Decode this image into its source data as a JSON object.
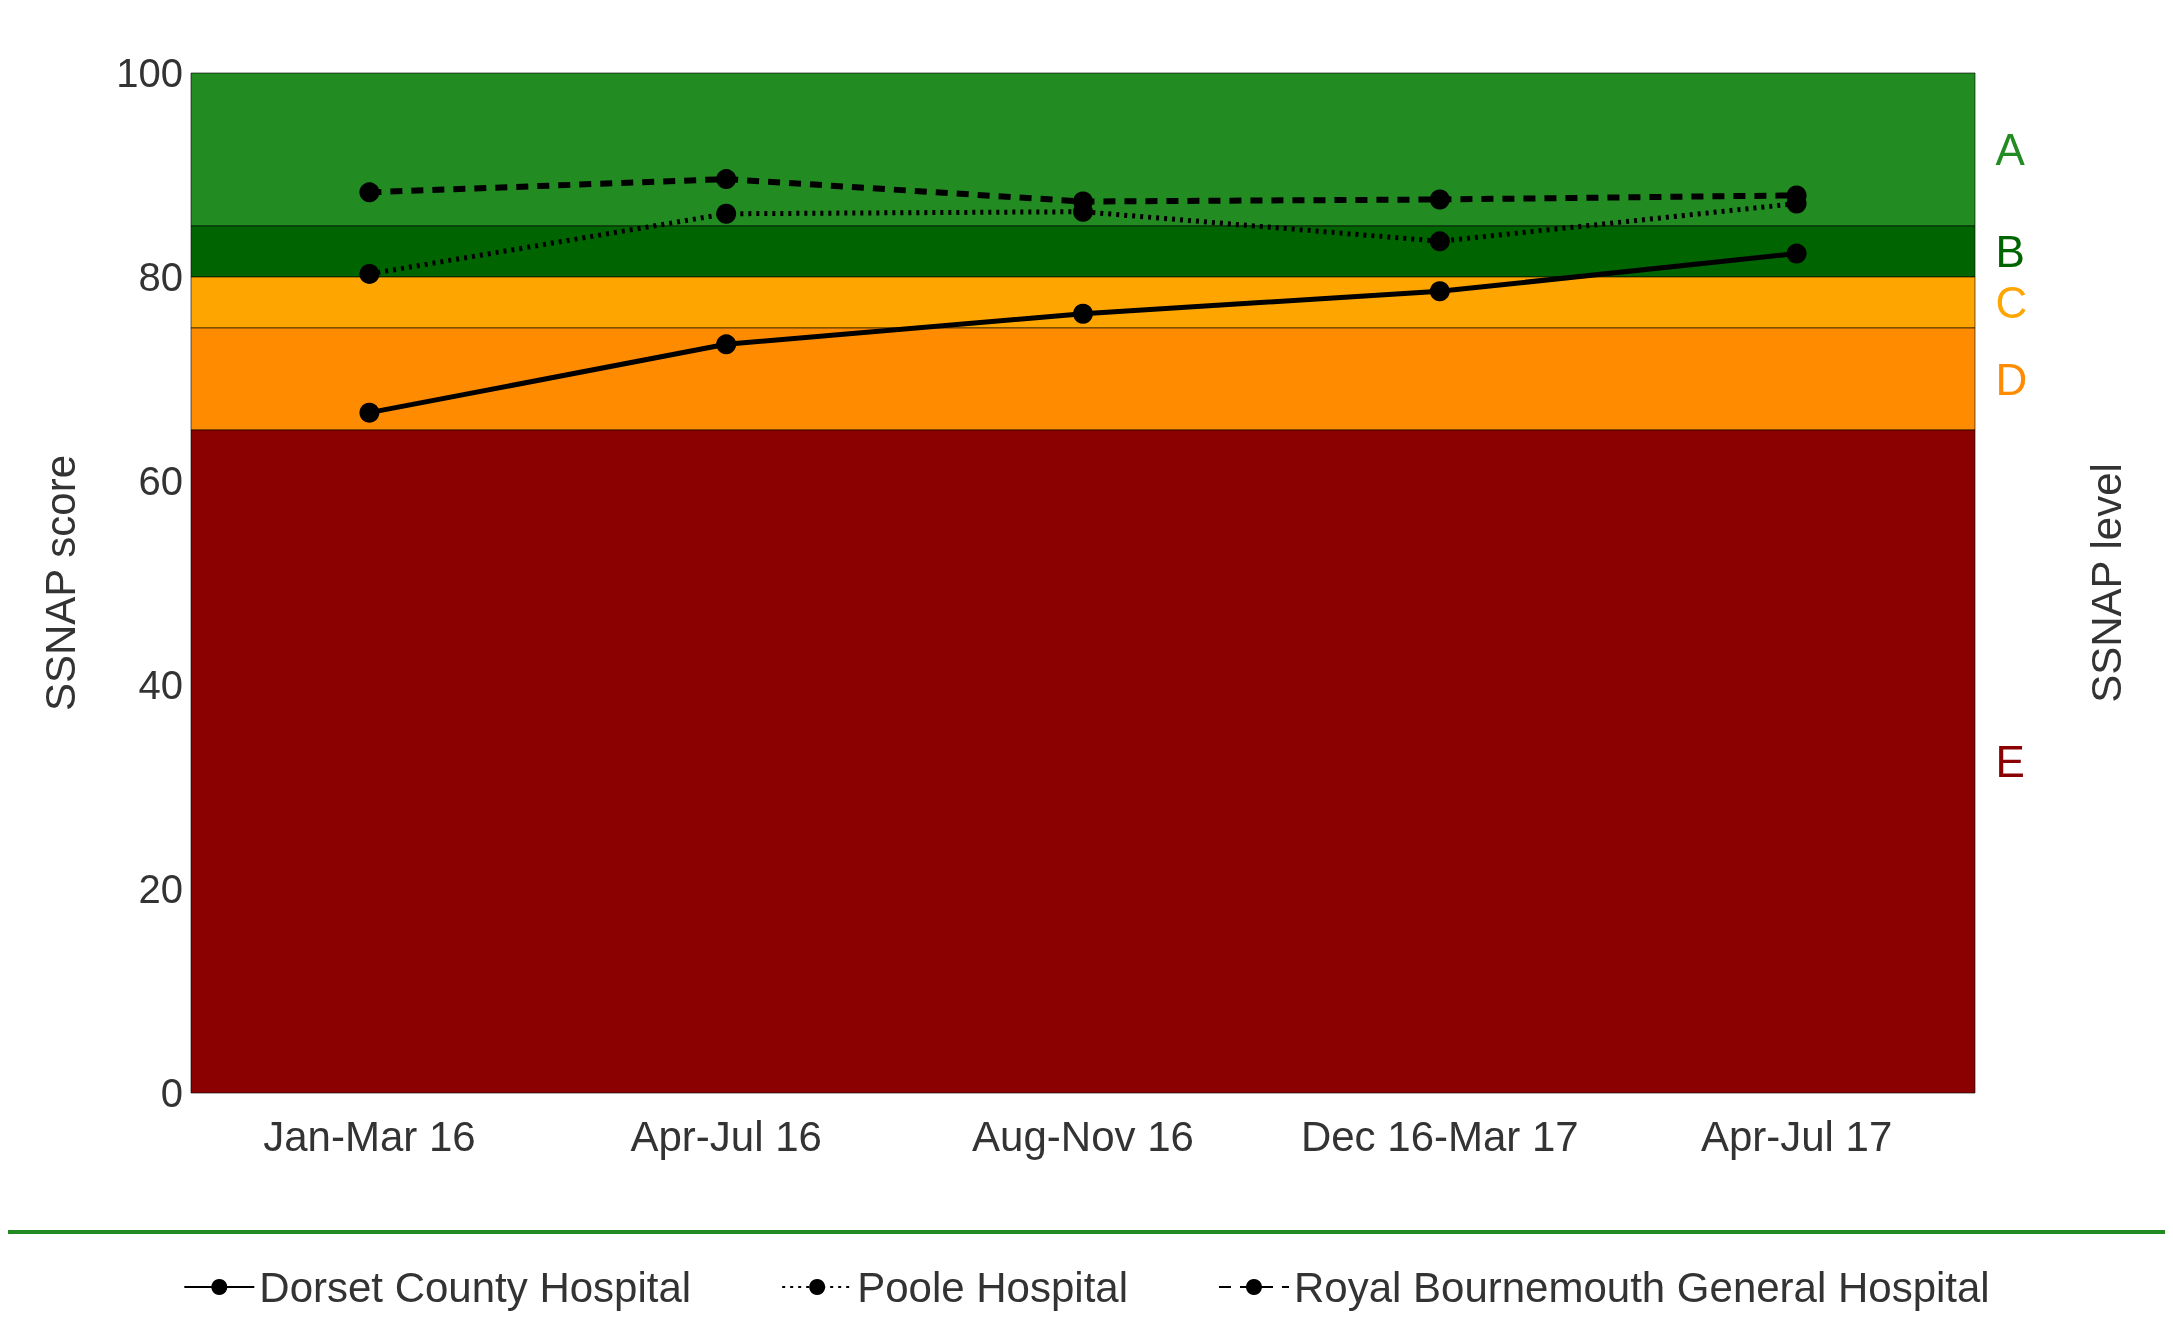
{
  "chart_data": {
    "type": "line",
    "ylabel": "SSNAP score",
    "y2label": "SSNAP level",
    "categories": [
      "Jan-Mar 16",
      "Apr-Jul 16",
      "Aug-Nov 16",
      "Dec 16-Mar 17",
      "Apr-Jul 17"
    ],
    "ylim": [
      0,
      100
    ],
    "yticks": [
      0,
      20,
      40,
      60,
      80,
      100
    ],
    "series": [
      {
        "name": "Dorset County Hospital",
        "color": "#000000",
        "line_style": "solid",
        "values": [
          66.7,
          73.4,
          76.4,
          78.6,
          82.3
        ]
      },
      {
        "name": "Poole Hospital",
        "color": "#000000",
        "line_style": "dotted",
        "values": [
          80.3,
          86.2,
          86.4,
          83.5,
          87.2
        ]
      },
      {
        "name": "Royal Bournemouth General Hospital",
        "color": "#000000",
        "line_style": "dashed",
        "values": [
          88.3,
          89.6,
          87.4,
          87.6,
          88.0
        ]
      }
    ],
    "bands": [
      {
        "axis": "y",
        "from": 85,
        "to": 100,
        "label": "A",
        "color": "#228b22"
      },
      {
        "axis": "y",
        "from": 80,
        "to": 85,
        "label": "B",
        "color": "#006400"
      },
      {
        "axis": "y",
        "from": 75,
        "to": 80,
        "label": "C",
        "color": "#ffa500"
      },
      {
        "axis": "y",
        "from": 65,
        "to": 75,
        "label": "D",
        "color": "#ff8c00"
      },
      {
        "axis": "y",
        "from": 0,
        "to": 65,
        "label": "E",
        "color": "#8b0000"
      }
    ],
    "marker": "circle",
    "grid": false,
    "legend": "bottom"
  }
}
